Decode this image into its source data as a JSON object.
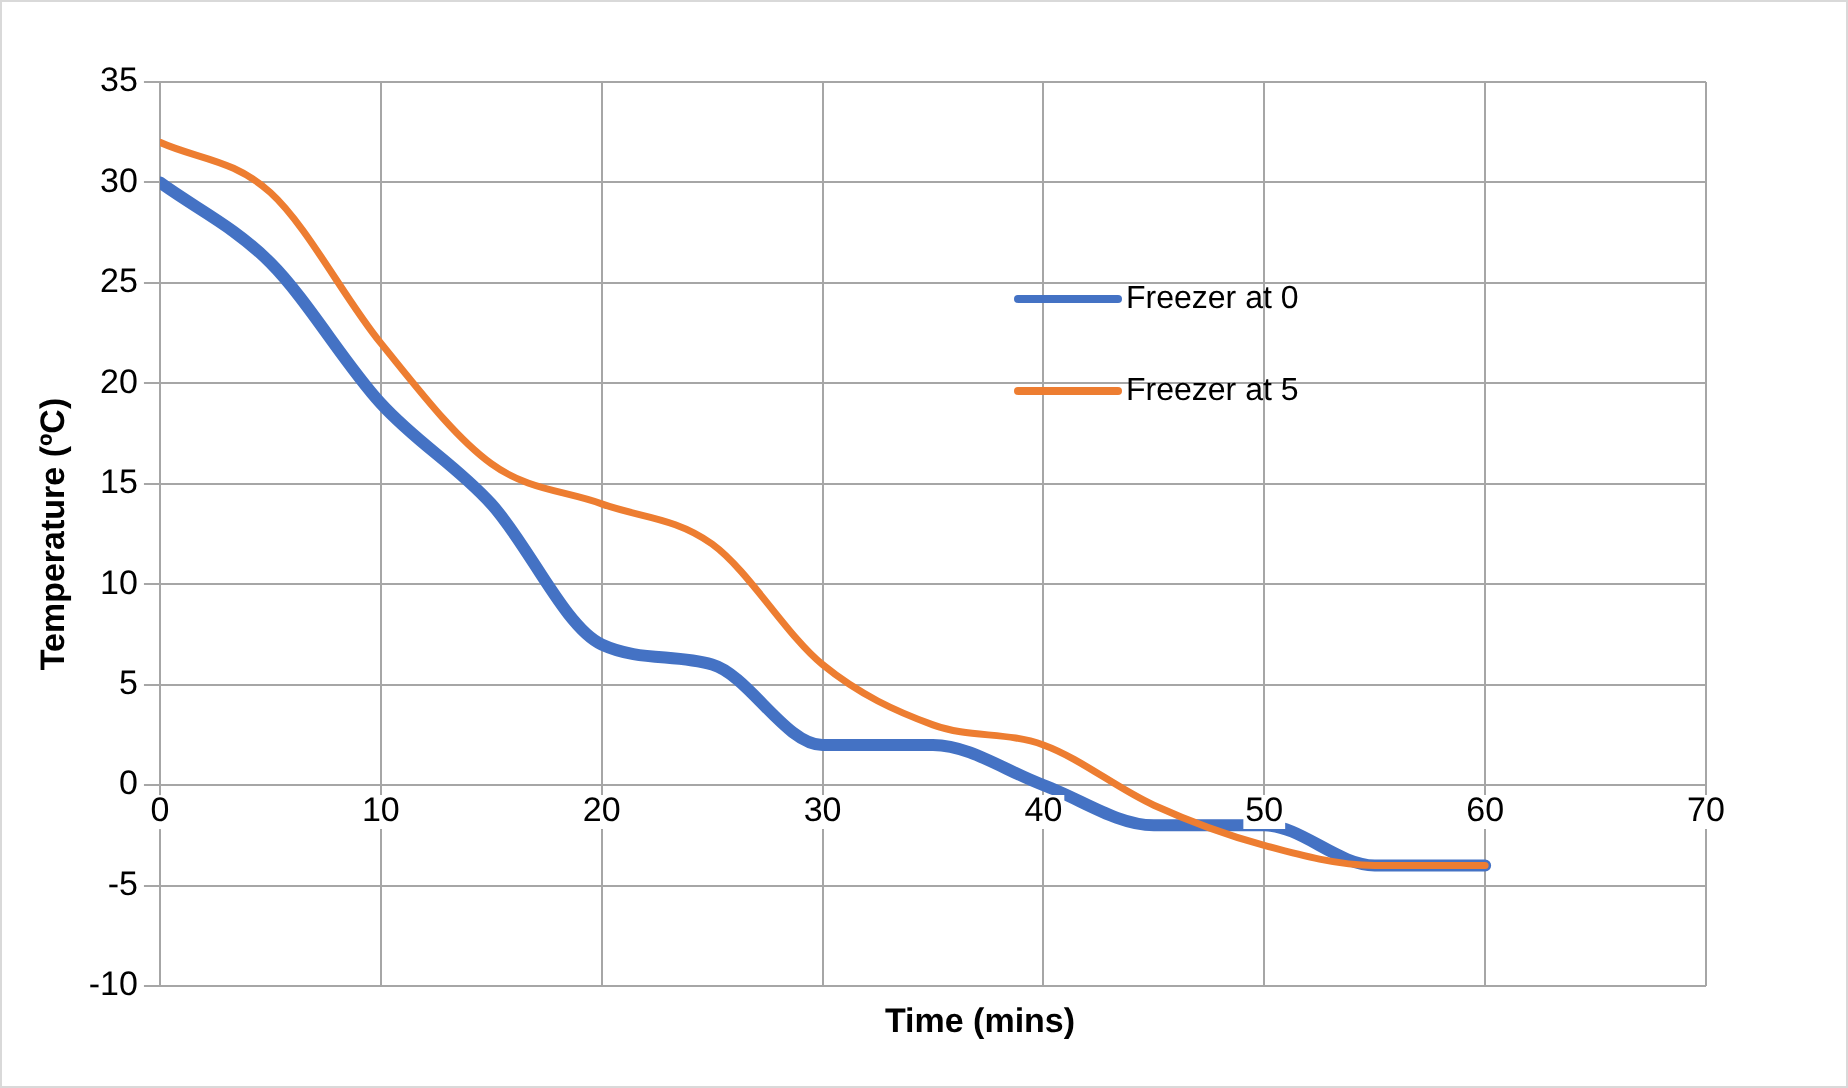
{
  "chart_data": {
    "type": "line",
    "xlabel": "Time (mins)",
    "ylabel": "Temperature (ºC)",
    "x": [
      0,
      5,
      10,
      15,
      20,
      25,
      30,
      35,
      40,
      45,
      50,
      55,
      60
    ],
    "series": [
      {
        "name": "Freezer at 0",
        "color": "#4472c4",
        "values": [
          30,
          26,
          19,
          14,
          7,
          6,
          2,
          2,
          0,
          -2,
          -2,
          -4,
          -4
        ]
      },
      {
        "name": "Freezer at 5",
        "color": "#ed7d31",
        "values": [
          32,
          29.5,
          22,
          16,
          14,
          12,
          6,
          3,
          2,
          -1,
          -3,
          -4,
          -4
        ]
      }
    ],
    "xlim": [
      0,
      70
    ],
    "xticks": [
      0,
      10,
      20,
      30,
      40,
      50,
      60,
      70
    ],
    "ylim": [
      -10,
      35
    ],
    "yticks": [
      -10,
      -5,
      0,
      5,
      10,
      15,
      20,
      25,
      30,
      35
    ],
    "grid": true,
    "legend": "right",
    "marker": "none",
    "line_style": "solid"
  }
}
